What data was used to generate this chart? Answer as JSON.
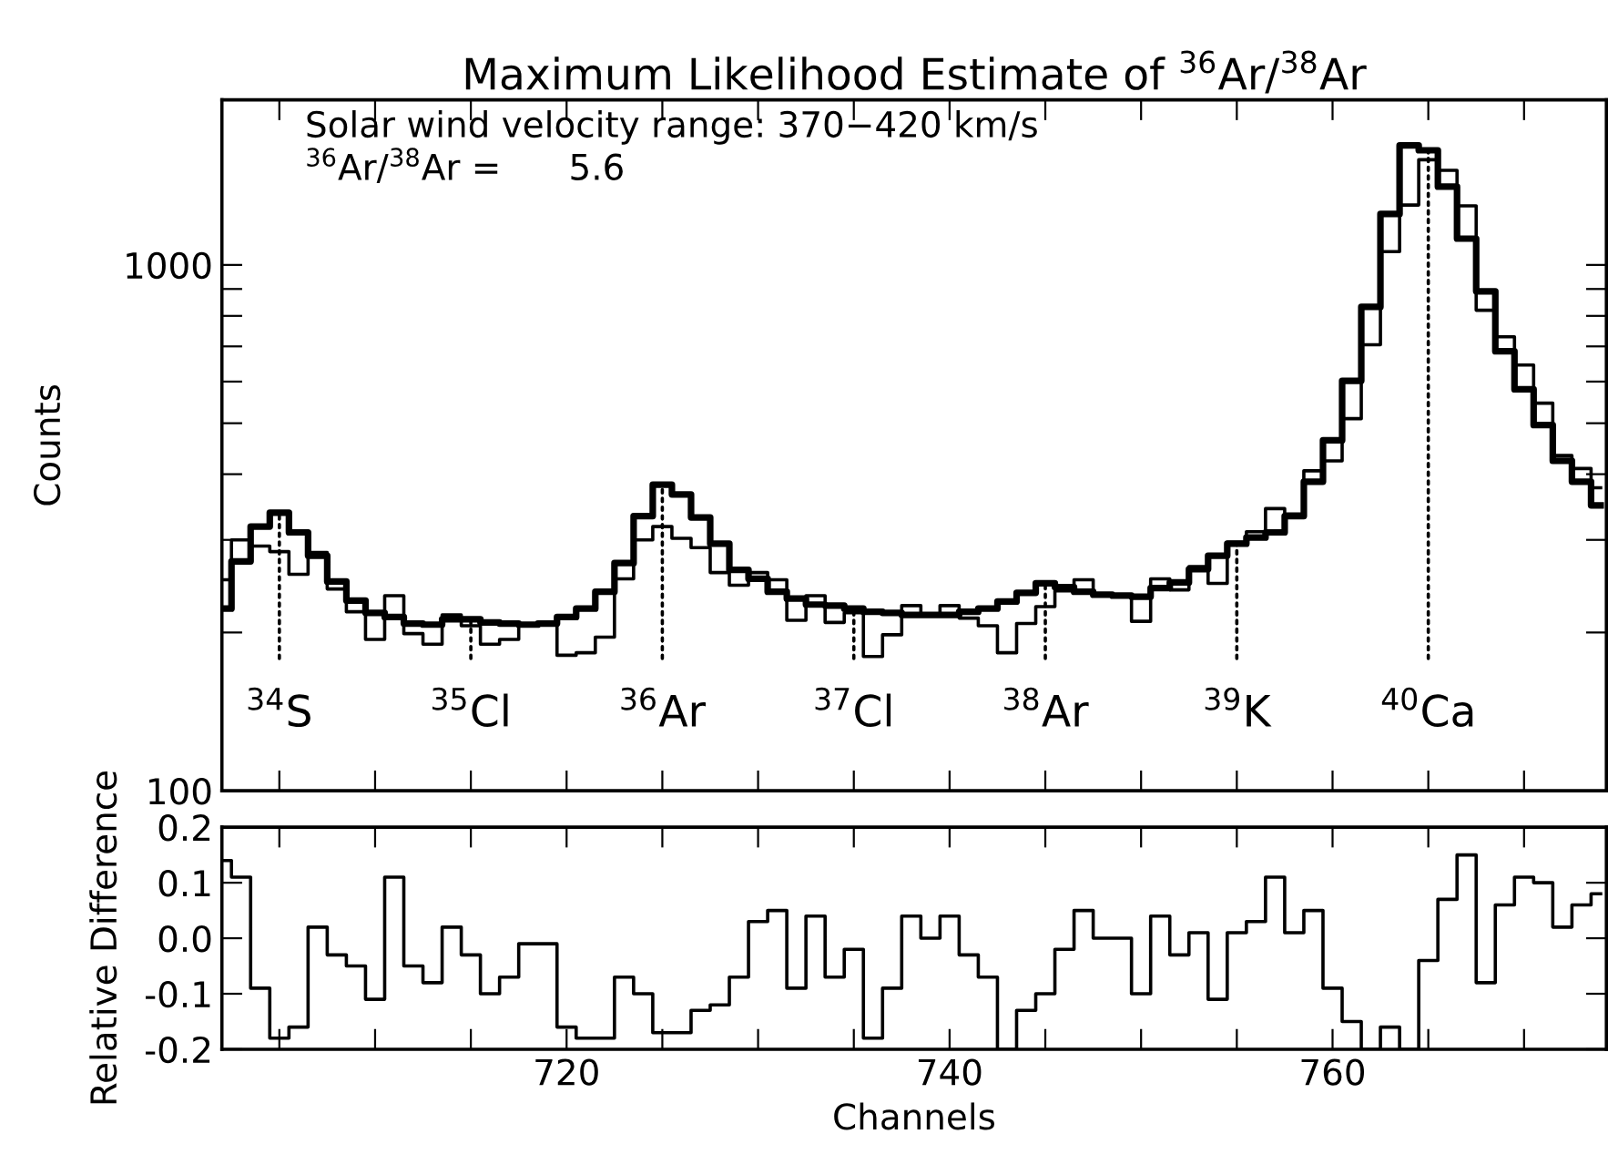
{
  "chart_data": [
    {
      "type": "step",
      "title": "Maximum Likelihood Estimate of $^{36}$Ar/$^{38}$Ar",
      "ylabel": "Counts",
      "x": [
        702,
        703,
        704,
        705,
        706,
        707,
        708,
        709,
        710,
        711,
        712,
        713,
        714,
        715,
        716,
        717,
        718,
        719,
        720,
        721,
        722,
        723,
        724,
        725,
        726,
        727,
        728,
        729,
        730,
        731,
        732,
        733,
        734,
        735,
        736,
        737,
        738,
        739,
        740,
        741,
        742,
        743,
        744,
        745,
        746,
        747,
        748,
        749,
        750,
        751,
        752,
        753,
        754,
        755,
        756,
        757,
        758,
        759,
        760,
        761,
        762,
        763,
        764,
        765,
        766,
        767,
        768,
        769,
        770,
        771,
        772,
        773,
        774
      ],
      "series": [
        {
          "color": "#000000",
          "values": [
            222,
            273,
            318,
            338,
            310,
            280,
            250,
            230,
            218,
            214,
            208,
            207,
            212,
            212,
            209,
            208,
            207,
            208,
            214,
            222,
            239,
            271,
            333,
            382,
            366,
            331,
            295,
            263,
            253,
            239,
            232,
            226,
            225,
            222,
            219,
            218,
            216,
            216,
            216,
            219,
            222,
            229,
            238,
            248,
            244,
            239,
            236,
            235,
            234,
            243,
            249,
            264,
            280,
            295,
            303,
            310,
            333,
            387,
            464,
            602,
            832,
            1250,
            1687,
            1652,
            1409,
            1122,
            891,
            685,
            580,
            496,
            424,
            387,
            349
          ]
        },
        {
          "color": "#000000",
          "values": [
            252,
            300,
            292,
            285,
            258,
            284,
            242,
            219,
            194,
            235,
            199,
            190,
            216,
            206,
            190,
            194,
            206,
            208,
            181,
            183,
            196,
            253,
            300,
            318,
            302,
            290,
            260,
            246,
            260,
            252,
            211,
            235,
            209,
            218,
            180,
            198,
            225,
            215,
            225,
            213,
            206,
            183,
            208,
            224,
            240,
            252,
            237,
            235,
            210,
            253,
            241,
            267,
            248,
            297,
            311,
            344,
            336,
            406,
            424,
            510,
            705,
            1060,
            1300,
            1585,
            1513,
            1295,
            820,
            730,
            645,
            546,
            434,
            410,
            377
          ]
        }
      ],
      "log": "y",
      "xlim": [
        702,
        774.3
      ],
      "ylim": [
        100,
        2060
      ],
      "xticks": [
        {
          "value": 705,
          "label": null
        },
        {
          "value": 710,
          "label": null
        },
        {
          "value": 715,
          "label": null
        },
        {
          "value": 720,
          "label": null
        },
        {
          "value": 725,
          "label": null
        },
        {
          "value": 730,
          "label": null
        },
        {
          "value": 735,
          "label": null
        },
        {
          "value": 740,
          "label": null
        },
        {
          "value": 745,
          "label": null
        },
        {
          "value": 750,
          "label": null
        },
        {
          "value": 755,
          "label": null
        },
        {
          "value": 760,
          "label": null
        },
        {
          "value": 765,
          "label": null
        },
        {
          "value": 770,
          "label": null
        }
      ],
      "yticks": [
        100,
        {
          "value": 200,
          "label": null
        },
        {
          "value": 300,
          "label": null
        },
        {
          "value": 400,
          "label": null
        },
        {
          "value": 500,
          "label": null
        },
        {
          "value": 600,
          "label": null
        },
        {
          "value": 700,
          "label": null
        },
        {
          "value": 800,
          "label": null
        },
        {
          "value": 900,
          "label": null
        },
        1000
      ],
      "tick_labels": "y",
      "grid": false,
      "annotations": [
        "Solar wind velocity range: 370−420 km/s",
        "$^{36}$Ar/$^{38}$Ar =      5.6",
        {
          "text": "$^{34}$S",
          "x": 705,
          "y": 338
        },
        {
          "text": "$^{35}$Cl",
          "x": 715,
          "y": 212
        },
        {
          "text": "$^{36}$Ar",
          "x": 725,
          "y": 382
        },
        {
          "text": "$^{37}$Cl",
          "x": 735,
          "y": 222
        },
        {
          "text": "$^{38}$Ar",
          "x": 745,
          "y": 248
        },
        {
          "text": "$^{39}$K",
          "x": 755,
          "y": 295
        },
        {
          "text": "$^{40}$Ca",
          "x": 765,
          "y": 1652
        }
      ]
    },
    {
      "type": "step",
      "xlabel": "Channels",
      "ylabel": "Relative Difference",
      "x": [
        702,
        703,
        704,
        705,
        706,
        707,
        708,
        709,
        710,
        711,
        712,
        713,
        714,
        715,
        716,
        717,
        718,
        719,
        720,
        721,
        722,
        723,
        724,
        725,
        726,
        727,
        728,
        729,
        730,
        731,
        732,
        733,
        734,
        735,
        736,
        737,
        738,
        739,
        740,
        741,
        742,
        743,
        744,
        745,
        746,
        747,
        748,
        749,
        750,
        751,
        752,
        753,
        754,
        755,
        756,
        757,
        758,
        759,
        760,
        761,
        762,
        763,
        764,
        765,
        766,
        767,
        768,
        769,
        770,
        771,
        772,
        773,
        774
      ],
      "series": [
        {
          "color": "#000000",
          "values": [
            0.14,
            0.11,
            -0.09,
            -0.18,
            -0.16,
            0.02,
            -0.03,
            -0.05,
            -0.11,
            0.11,
            -0.05,
            -0.08,
            0.02,
            -0.03,
            -0.1,
            -0.07,
            -0.01,
            -0.01,
            -0.16,
            -0.18,
            -0.18,
            -0.07,
            -0.1,
            -0.17,
            -0.17,
            -0.13,
            -0.12,
            -0.07,
            0.03,
            0.05,
            -0.09,
            0.04,
            -0.07,
            -0.02,
            -0.18,
            -0.09,
            0.04,
            0,
            0.04,
            -0.03,
            -0.07,
            -0.2,
            -0.13,
            -0.1,
            -0.02,
            0.05,
            0,
            0,
            -0.1,
            0.04,
            -0.03,
            0.01,
            -0.11,
            0.01,
            0.03,
            0.11,
            0.01,
            0.05,
            -0.09,
            -0.15,
            -0.2,
            -0.16,
            -0.2,
            -0.04,
            0.07,
            0.15,
            -0.08,
            0.06,
            0.11,
            0.1,
            0.02,
            0.06,
            0.08
          ]
        }
      ],
      "xlim": [
        702,
        774.3
      ],
      "ylim": [
        -0.2,
        0.2
      ],
      "xticks": [
        {
          "value": 705,
          "label": null
        },
        {
          "value": 710,
          "label": null
        },
        {
          "value": 715,
          "label": null
        },
        720,
        {
          "value": 725,
          "label": null
        },
        {
          "value": 730,
          "label": null
        },
        {
          "value": 735,
          "label": null
        },
        740,
        {
          "value": 745,
          "label": null
        },
        {
          "value": 750,
          "label": null
        },
        {
          "value": 755,
          "label": null
        },
        760,
        {
          "value": 765,
          "label": null
        },
        {
          "value": 770,
          "label": null
        }
      ],
      "yticks": [
        {
          "value": -0.2,
          "label": "-0.2"
        },
        {
          "value": -0.1,
          "label": "-0.1"
        },
        {
          "value": 0,
          "label": "0.0"
        },
        {
          "value": 0.1,
          "label": "0.1"
        },
        {
          "value": 0.2,
          "label": "0.2"
        }
      ],
      "grid": false
    }
  ]
}
